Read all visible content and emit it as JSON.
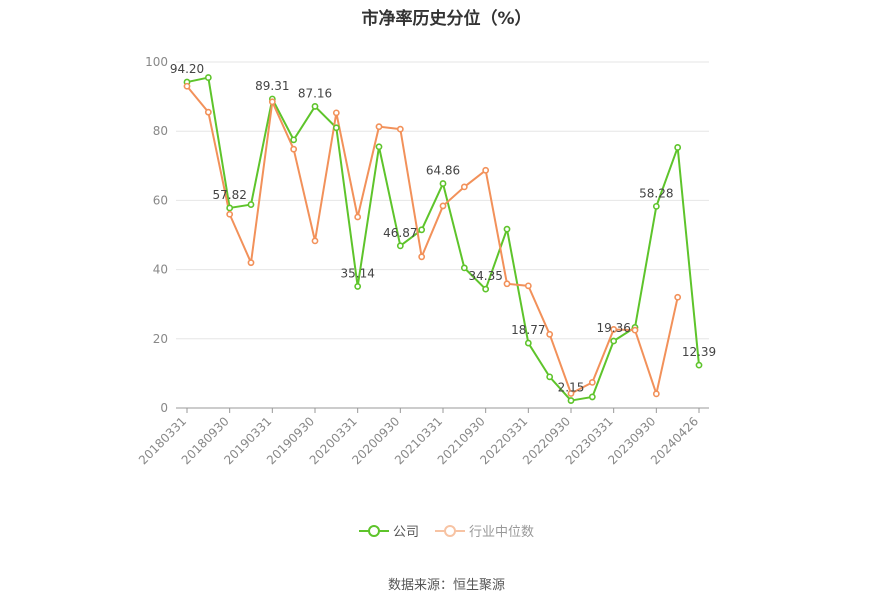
{
  "chart_data": {
    "type": "line",
    "title": "市净率历史分位（%）",
    "xlabel": "",
    "ylabel": "",
    "ylim": [
      0,
      100
    ],
    "yticks": [
      0,
      20,
      40,
      60,
      80,
      100
    ],
    "x": [
      "20180331",
      "20180630",
      "20180930",
      "20181231",
      "20190331",
      "20190630",
      "20190930",
      "20191231",
      "20200331",
      "20200630",
      "20200930",
      "20201231",
      "20210331",
      "20210630",
      "20210930",
      "20211231",
      "20220331",
      "20220630",
      "20220930",
      "20221231",
      "20230331",
      "20230630",
      "20230930",
      "20231231",
      "20240426"
    ],
    "xtick_labels": [
      "20180331",
      "20180930",
      "20190331",
      "20190930",
      "20200331",
      "20200930",
      "20210331",
      "20210930",
      "20220331",
      "20220930",
      "20230331",
      "20230930",
      "20240426"
    ],
    "series": [
      {
        "name": "公司",
        "color": "#5ec42b",
        "values": [
          94.2,
          95.5,
          57.82,
          58.8,
          89.31,
          77.5,
          87.16,
          81.0,
          35.14,
          75.5,
          46.87,
          51.5,
          64.86,
          40.5,
          34.35,
          51.7,
          18.77,
          9.0,
          2.15,
          3.2,
          19.36,
          23.3,
          58.28,
          75.3,
          12.39
        ],
        "labels": {
          "0": "94.20",
          "2": "57.82",
          "4": "89.31",
          "6": "87.16",
          "8": "35.14",
          "10": "46.87",
          "12": "64.86",
          "14": "34.35",
          "16": "18.77",
          "18": "2.15",
          "20": "19.36",
          "22": "58.28",
          "24": "12.39"
        }
      },
      {
        "name": "行业中位数",
        "color": "#f2915a",
        "values": [
          93.0,
          85.5,
          56.0,
          42.0,
          88.5,
          74.8,
          48.3,
          85.3,
          55.2,
          81.3,
          80.6,
          43.7,
          58.4,
          63.9,
          68.7,
          35.9,
          35.3,
          21.3,
          4.2,
          7.4,
          22.7,
          22.5,
          4.1,
          32.0,
          null
        ]
      }
    ],
    "legend_position": "bottom",
    "grid": true
  },
  "source_text": "数据来源：恒生聚源"
}
